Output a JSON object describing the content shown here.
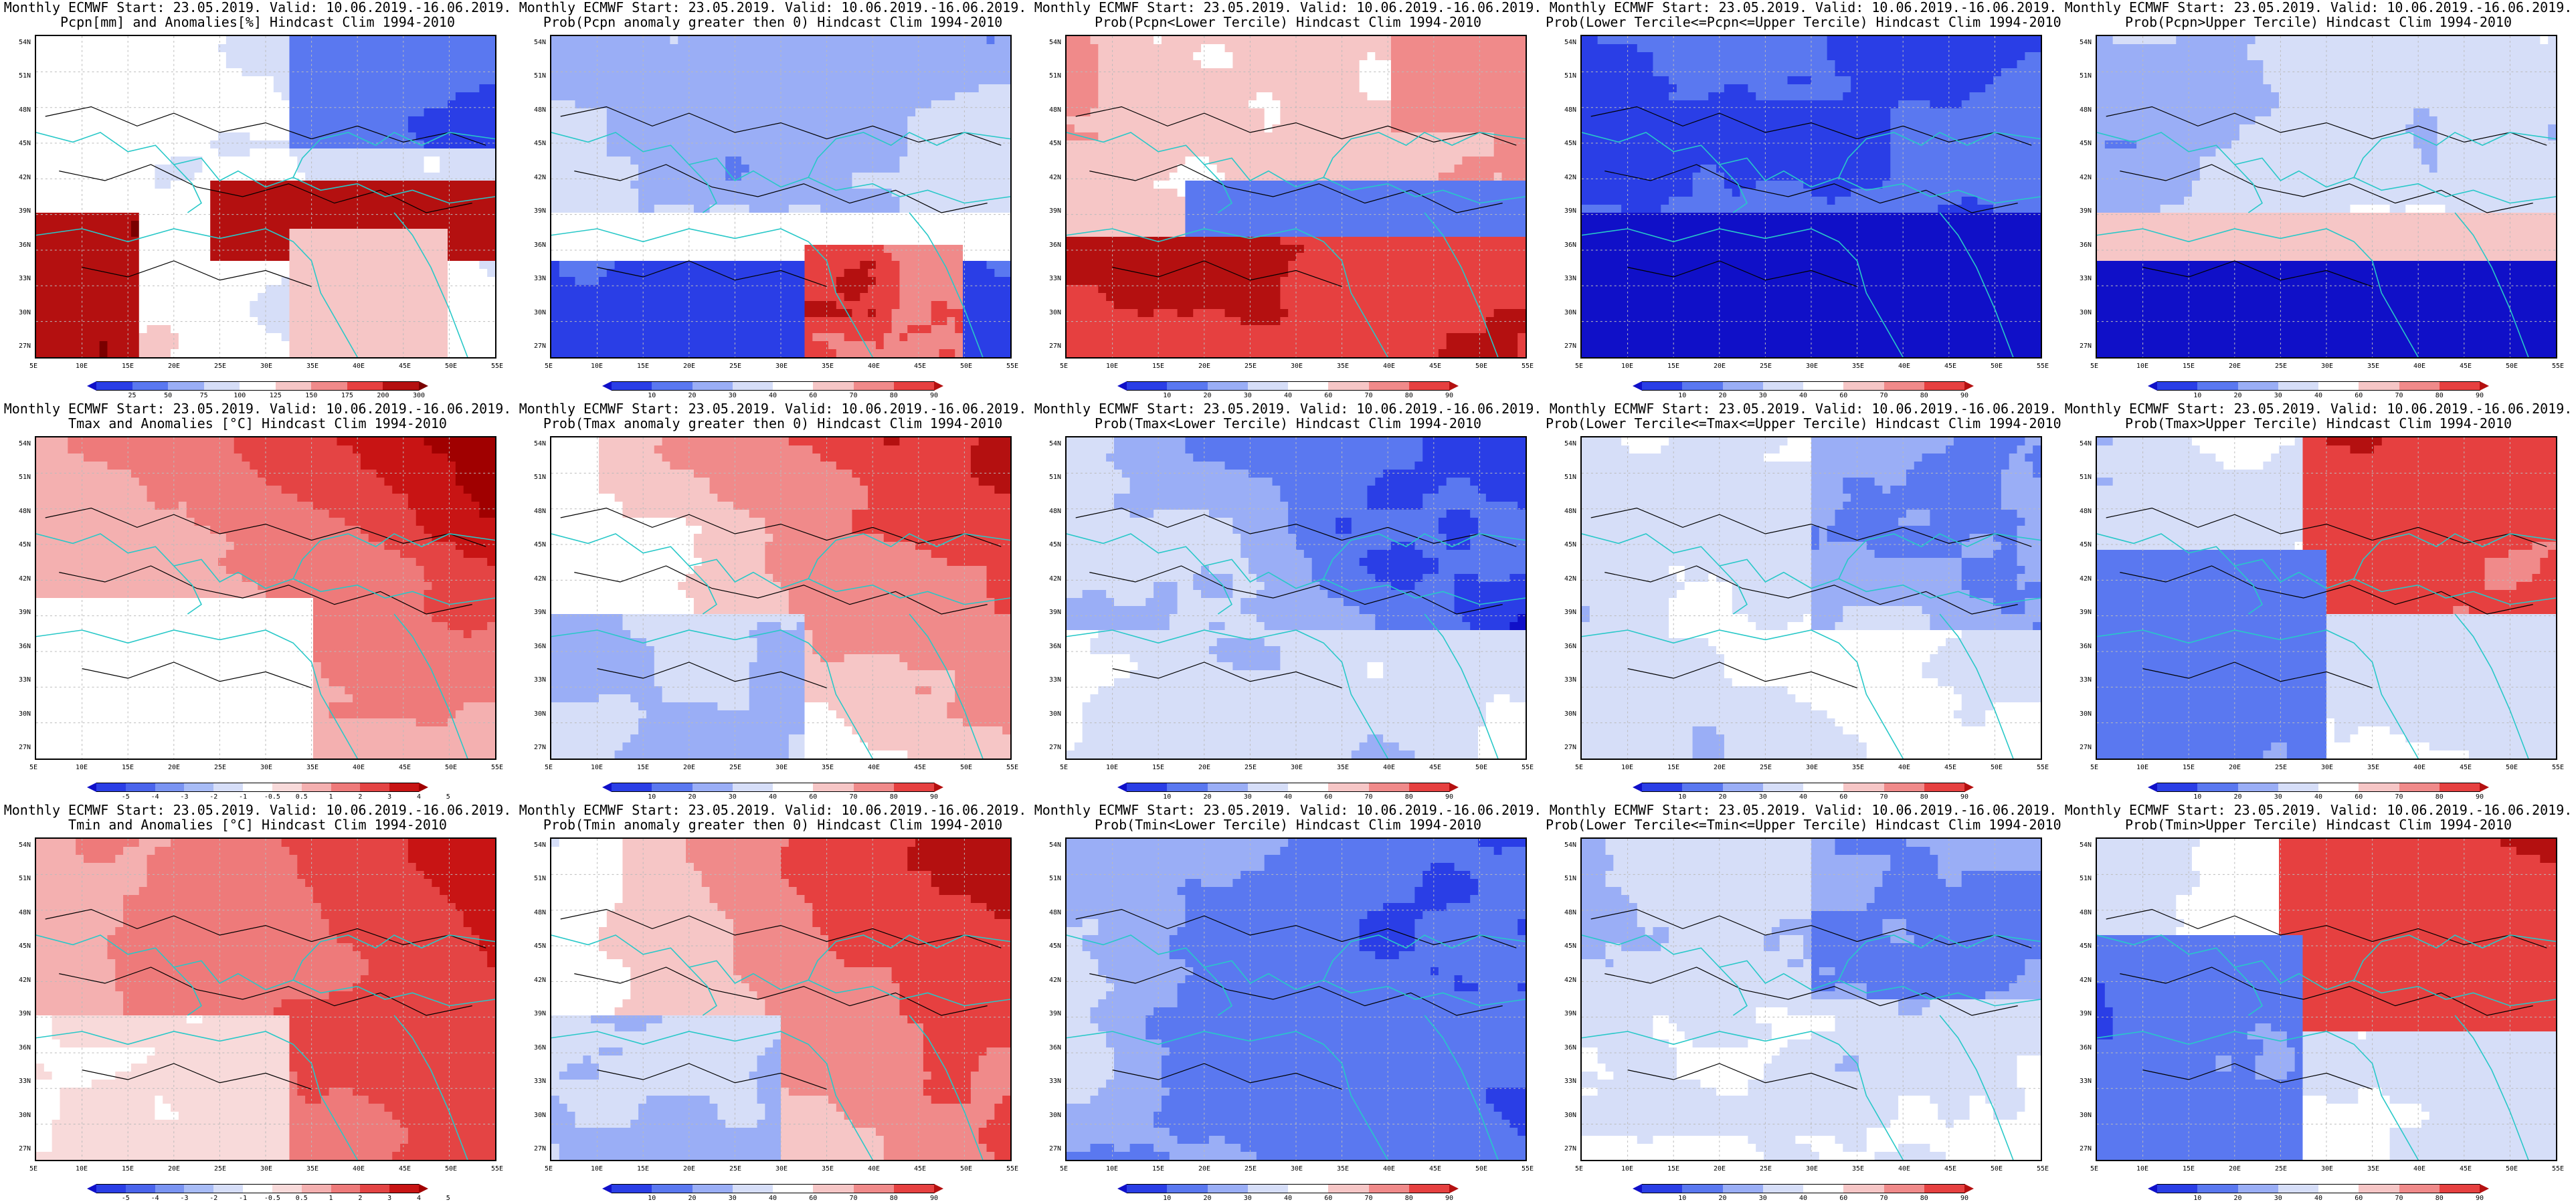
{
  "panels": [
    {
      "t1": "Monthly ECMWF Start: 23.05.2019. Valid: 10.06.2019.-16.06.2019.",
      "t2": "Pcpn[mm] and Anomalies[%] Hindcast Clim 1994-2010",
      "scale": "pcpn_anom",
      "pattern": "pcpn_anom"
    },
    {
      "t1": "Monthly ECMWF Start: 23.05.2019. Valid: 10.06.2019.-16.06.2019.",
      "t2": "Prob(Pcpn anomaly greater then 0) Hindcast Clim 1994-2010",
      "scale": "prob",
      "pattern": "pcpn_prob_gt0"
    },
    {
      "t1": "Monthly ECMWF Start: 23.05.2019. Valid: 10.06.2019.-16.06.2019.",
      "t2": "Prob(Pcpn<Lower Tercile) Hindcast Clim 1994-2010",
      "scale": "prob",
      "pattern": "pcpn_lower"
    },
    {
      "t1": "Monthly ECMWF Start: 23.05.2019. Valid: 10.06.2019.-16.06.2019.",
      "t2": "Prob(Lower Tercile<=Pcpn<=Upper Tercile) Hindcast Clim 1994-2010",
      "scale": "prob",
      "pattern": "pcpn_middle"
    },
    {
      "t1": "Monthly ECMWF Start: 23.05.2019. Valid: 10.06.2019.-16.06.2019.",
      "t2": "Prob(Pcpn>Upper Tercile) Hindcast Clim 1994-2010",
      "scale": "prob",
      "pattern": "pcpn_upper"
    },
    {
      "t1": "Monthly ECMWF Start: 23.05.2019. Valid: 10.06.2019.-16.06.2019.",
      "t2": "Tmax and Anomalies [°C] Hindcast Clim 1994-2010",
      "scale": "temp_anom",
      "pattern": "tmax_anom"
    },
    {
      "t1": "Monthly ECMWF Start: 23.05.2019. Valid: 10.06.2019.-16.06.2019.",
      "t2": "Prob(Tmax anomaly greater then 0) Hindcast Clim 1994-2010",
      "scale": "prob",
      "pattern": "tmax_prob_gt0"
    },
    {
      "t1": "Monthly ECMWF Start: 23.05.2019. Valid: 10.06.2019.-16.06.2019.",
      "t2": "Prob(Tmax<Lower Tercile) Hindcast Clim 1994-2010",
      "scale": "prob",
      "pattern": "tmax_lower"
    },
    {
      "t1": "Monthly ECMWF Start: 23.05.2019. Valid: 10.06.2019.-16.06.2019.",
      "t2": "Prob(Lower Tercile<=Tmax<=Upper Tercile) Hindcast Clim 1994-2010",
      "scale": "prob",
      "pattern": "tmax_middle"
    },
    {
      "t1": "Monthly ECMWF Start: 23.05.2019. Valid: 10.06.2019.-16.06.2019.",
      "t2": "Prob(Tmax>Upper Tercile) Hindcast Clim 1994-2010",
      "scale": "prob",
      "pattern": "tmax_upper"
    },
    {
      "t1": "Monthly ECMWF Start: 23.05.2019. Valid: 10.06.2019.-16.06.2019.",
      "t2": "Tmin and Anomalies [°C] Hindcast Clim 1994-2010",
      "scale": "temp_anom",
      "pattern": "tmin_anom"
    },
    {
      "t1": "Monthly ECMWF Start: 23.05.2019. Valid: 10.06.2019.-16.06.2019.",
      "t2": "Prob(Tmin anomaly greater then 0) Hindcast Clim 1994-2010",
      "scale": "prob",
      "pattern": "tmin_prob_gt0"
    },
    {
      "t1": "Monthly ECMWF Start: 23.05.2019. Valid: 10.06.2019.-16.06.2019.",
      "t2": "Prob(Tmin<Lower Tercile) Hindcast Clim 1994-2010",
      "scale": "prob",
      "pattern": "tmin_lower"
    },
    {
      "t1": "Monthly ECMWF Start: 23.05.2019. Valid: 10.06.2019.-16.06.2019.",
      "t2": "Prob(Lower Tercile<=Tmin<=Upper Tercile) Hindcast Clim 1994-2010",
      "scale": "prob",
      "pattern": "tmin_middle"
    },
    {
      "t1": "Monthly ECMWF Start: 23.05.2019. Valid: 10.06.2019.-16.06.2019.",
      "t2": "Prob(Tmin>Upper Tercile) Hindcast Clim 1994-2010",
      "scale": "prob",
      "pattern": "tmin_upper"
    }
  ],
  "axes": {
    "lat_labels": [
      "54N",
      "51N",
      "48N",
      "45N",
      "42N",
      "39N",
      "36N",
      "33N",
      "30N",
      "27N"
    ],
    "lon_labels": [
      "5E",
      "10E",
      "15E",
      "20E",
      "25E",
      "30E",
      "35E",
      "40E",
      "45E",
      "50E",
      "55E"
    ]
  },
  "scales": {
    "prob": {
      "labels": [
        "10",
        "20",
        "30",
        "40",
        "60",
        "70",
        "80",
        "90"
      ],
      "colors": [
        "#1010c8",
        "#2a3ee6",
        "#5a78f0",
        "#9aaef6",
        "#d6def8",
        "#ffffff",
        "#f6c6c6",
        "#f08a8a",
        "#e64040",
        "#b41010"
      ]
    },
    "pcpn_anom": {
      "labels": [
        "25",
        "50",
        "75",
        "100",
        "125",
        "150",
        "175",
        "200",
        "300"
      ],
      "colors": [
        "#1010c8",
        "#2a3ee6",
        "#5a78f0",
        "#9aaef6",
        "#d6def8",
        "#ffffff",
        "#f6c6c6",
        "#f08a8a",
        "#e64040",
        "#b41010",
        "#7a0000"
      ]
    },
    "temp_anom": {
      "labels": [
        "-5",
        "-4",
        "-3",
        "-2",
        "-1",
        "-0.5",
        "0.5",
        "1",
        "2",
        "3",
        "4",
        "5"
      ],
      "colors": [
        "#1010c8",
        "#2a3ee6",
        "#4a64ec",
        "#7a94f2",
        "#a8bcf6",
        "#d6def8",
        "#ffffff",
        "#f8dada",
        "#f4b0b0",
        "#ee7a7a",
        "#e44444",
        "#c81414",
        "#a00000"
      ]
    }
  },
  "colors": {
    "coast": "#28c8c8",
    "contour": "#000000",
    "grid": "#bbbbbb"
  }
}
